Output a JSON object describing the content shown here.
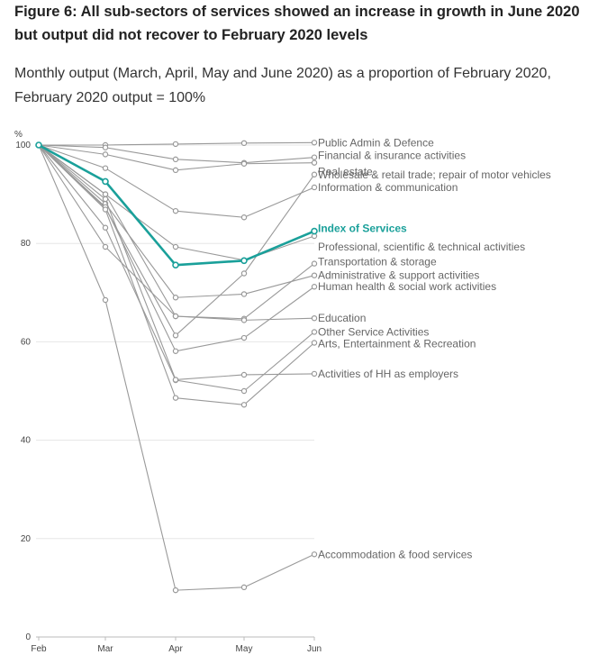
{
  "chart_data": {
    "type": "line",
    "title": "Figure 6: All sub-sectors of services showed an increase in growth in June 2020 but output did not recover to February 2020 levels",
    "subtitle": "Monthly output (March, April, May and June 2020) as a proportion of February 2020, February 2020 output = 100%",
    "ylabel": "%",
    "xlabel": "",
    "ylim": [
      0,
      100
    ],
    "yticks": [
      0,
      20,
      40,
      60,
      80,
      100
    ],
    "x": [
      "Feb",
      "Mar",
      "Apr",
      "May",
      "Jun"
    ],
    "grid": true,
    "highlight_color": "#1aa09a",
    "series_color": "#999999",
    "series": [
      {
        "name": "Public Admin & Defence",
        "values": [
          100,
          100.0,
          100.2,
          100.4,
          100.5
        ]
      },
      {
        "name": "Financial & insurance activities",
        "values": [
          100,
          99.5,
          97.1,
          96.4,
          97.5
        ]
      },
      {
        "name": "Real estate",
        "values": [
          100,
          98.1,
          94.9,
          96.2,
          96.4
        ]
      },
      {
        "name": "Wholesale & retail trade; repair of motor vehicles",
        "values": [
          100,
          87.2,
          61.3,
          73.9,
          94.0
        ]
      },
      {
        "name": "Information & communication",
        "values": [
          100,
          95.3,
          86.6,
          85.3,
          91.4
        ]
      },
      {
        "name": "Index of Services",
        "values": [
          100,
          92.6,
          75.6,
          76.5,
          82.5
        ],
        "highlight": true
      },
      {
        "name": "Professional, scientific & technical activities",
        "values": [
          100,
          90.0,
          79.3,
          76.6,
          81.5
        ]
      },
      {
        "name": "Transportation & storage",
        "values": [
          100,
          90.0,
          65.2,
          64.7,
          75.9
        ]
      },
      {
        "name": "Administrative & support activities",
        "values": [
          100,
          88.1,
          69.0,
          69.7,
          73.5
        ]
      },
      {
        "name": "Human health & social work activities",
        "values": [
          100,
          87.4,
          58.1,
          60.8,
          71.2
        ]
      },
      {
        "name": "Education",
        "values": [
          100,
          79.3,
          65.2,
          64.4,
          64.8
        ]
      },
      {
        "name": "Other Service Activities",
        "values": [
          100,
          83.2,
          52.2,
          50.0,
          62.0
        ]
      },
      {
        "name": "Arts, Entertainment & Recreation",
        "values": [
          100,
          86.9,
          48.6,
          47.2,
          59.8
        ]
      },
      {
        "name": "Activities of HH as employers",
        "values": [
          100,
          89.0,
          52.3,
          53.3,
          53.5
        ]
      },
      {
        "name": "Accommodation & food services",
        "values": [
          100,
          68.5,
          9.5,
          10.1,
          16.8
        ]
      }
    ],
    "label_offsets": {
      "Public Admin & Defence": 0,
      "Financial & insurance activities": -2,
      "Real estate": 10,
      "Wholesale & retail trade; repair of motor vehicles": 0,
      "Information & communication": 0,
      "Index of Services": -3,
      "Professional, scientific & technical activities": 12,
      "Transportation & storage": -2,
      "Administrative & support activities": 0,
      "Human health & social work activities": 0,
      "Education": 0,
      "Other Service Activities": 0,
      "Arts, Entertainment & Recreation": 1,
      "Activities of HH as employers": 0,
      "Accommodation & food services": 0
    }
  }
}
